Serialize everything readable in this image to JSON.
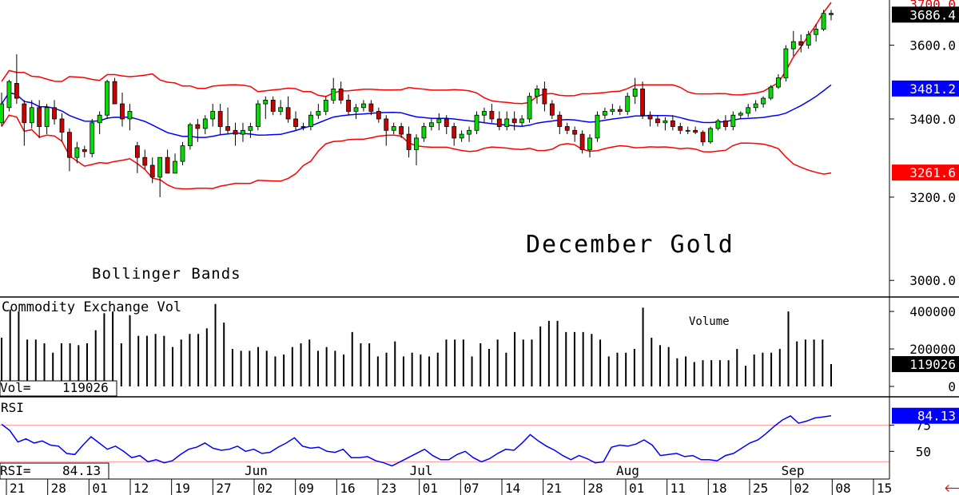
{
  "chart_data": {
    "type": "candlestick",
    "title": "December Gold",
    "indicator_label": "Bollinger Bands",
    "price_axis": {
      "scale": "log",
      "range": [
        2980,
        3710
      ],
      "ticks": [
        "3600.0",
        "3400.0",
        "3200.0",
        "3000.0"
      ],
      "tick_values": [
        3600,
        3400,
        3200,
        3000
      ],
      "top_clipped_label": "3700.0",
      "markers": [
        {
          "label": "3686.4",
          "value": 3686.4,
          "color": "#000000"
        },
        {
          "label": "3481.2",
          "value": 3481.2,
          "color": "#0000ff"
        },
        {
          "label": "3261.6",
          "value": 3261.6,
          "color": "#ff0000"
        }
      ]
    },
    "x_axis": {
      "labels": [
        "21",
        "28",
        "01",
        "12",
        "19",
        "27",
        "02",
        "09",
        "16",
        "23",
        "01",
        "07",
        "14",
        "21",
        "28",
        "01",
        "11",
        "18",
        "25",
        "02",
        "08",
        "15"
      ],
      "months": [
        "Jun",
        "Jul",
        "Aug",
        "Sep"
      ]
    },
    "candles": [
      [
        3390,
        3470,
        3380,
        3440
      ],
      [
        3430,
        3505,
        3420,
        3500
      ],
      [
        3495,
        3575,
        3440,
        3455
      ],
      [
        3440,
        3450,
        3330,
        3390
      ],
      [
        3390,
        3450,
        3375,
        3430
      ],
      [
        3430,
        3450,
        3350,
        3380
      ],
      [
        3380,
        3440,
        3360,
        3430
      ],
      [
        3430,
        3450,
        3385,
        3400
      ],
      [
        3400,
        3415,
        3340,
        3365
      ],
      [
        3365,
        3375,
        3265,
        3300
      ],
      [
        3300,
        3340,
        3285,
        3325
      ],
      [
        3320,
        3330,
        3300,
        3315
      ],
      [
        3310,
        3400,
        3300,
        3390
      ],
      [
        3390,
        3420,
        3360,
        3410
      ],
      [
        3410,
        3505,
        3400,
        3500
      ],
      [
        3500,
        3510,
        3440,
        3440
      ],
      [
        3440,
        3470,
        3380,
        3400
      ],
      [
        3400,
        3440,
        3370,
        3420
      ],
      [
        3330,
        3340,
        3260,
        3300
      ],
      [
        3300,
        3320,
        3270,
        3280
      ],
      [
        3280,
        3300,
        3235,
        3250
      ],
      [
        3250,
        3300,
        3200,
        3300
      ],
      [
        3300,
        3320,
        3260,
        3260
      ],
      [
        3260,
        3310,
        3260,
        3290
      ],
      [
        3290,
        3340,
        3280,
        3330
      ],
      [
        3330,
        3390,
        3320,
        3385
      ],
      [
        3385,
        3400,
        3340,
        3375
      ],
      [
        3375,
        3410,
        3360,
        3400
      ],
      [
        3400,
        3440,
        3380,
        3420
      ],
      [
        3420,
        3440,
        3360,
        3380
      ],
      [
        3380,
        3430,
        3360,
        3370
      ],
      [
        3370,
        3390,
        3330,
        3360
      ],
      [
        3360,
        3390,
        3340,
        3370
      ],
      [
        3370,
        3390,
        3350,
        3380
      ],
      [
        3380,
        3450,
        3370,
        3440
      ],
      [
        3440,
        3460,
        3400,
        3450
      ],
      [
        3450,
        3460,
        3410,
        3420
      ],
      [
        3420,
        3450,
        3410,
        3430
      ],
      [
        3430,
        3460,
        3390,
        3400
      ],
      [
        3400,
        3420,
        3370,
        3380
      ],
      [
        3380,
        3390,
        3370,
        3380
      ],
      [
        3380,
        3420,
        3370,
        3410
      ],
      [
        3410,
        3440,
        3400,
        3420
      ],
      [
        3420,
        3460,
        3410,
        3450
      ],
      [
        3450,
        3510,
        3440,
        3480
      ],
      [
        3480,
        3500,
        3440,
        3450
      ],
      [
        3450,
        3465,
        3410,
        3420
      ],
      [
        3420,
        3440,
        3400,
        3430
      ],
      [
        3430,
        3450,
        3420,
        3440
      ],
      [
        3440,
        3450,
        3410,
        3420
      ],
      [
        3420,
        3430,
        3390,
        3400
      ],
      [
        3400,
        3410,
        3330,
        3370
      ],
      [
        3370,
        3390,
        3360,
        3380
      ],
      [
        3380,
        3390,
        3350,
        3360
      ],
      [
        3360,
        3380,
        3300,
        3320
      ],
      [
        3320,
        3360,
        3280,
        3350
      ],
      [
        3350,
        3390,
        3340,
        3380
      ],
      [
        3380,
        3400,
        3370,
        3390
      ],
      [
        3390,
        3415,
        3370,
        3400
      ],
      [
        3400,
        3410,
        3360,
        3380
      ],
      [
        3380,
        3390,
        3330,
        3350
      ],
      [
        3350,
        3370,
        3340,
        3360
      ],
      [
        3360,
        3380,
        3340,
        3370
      ],
      [
        3370,
        3420,
        3360,
        3410
      ],
      [
        3410,
        3430,
        3390,
        3420
      ],
      [
        3420,
        3440,
        3390,
        3400
      ],
      [
        3400,
        3420,
        3370,
        3380
      ],
      [
        3380,
        3420,
        3370,
        3400
      ],
      [
        3400,
        3420,
        3370,
        3390
      ],
      [
        3390,
        3410,
        3380,
        3400
      ],
      [
        3400,
        3470,
        3390,
        3460
      ],
      [
        3460,
        3490,
        3440,
        3480
      ],
      [
        3480,
        3500,
        3420,
        3440
      ],
      [
        3440,
        3450,
        3400,
        3410
      ],
      [
        3410,
        3420,
        3360,
        3380
      ],
      [
        3380,
        3390,
        3360,
        3370
      ],
      [
        3370,
        3380,
        3340,
        3360
      ],
      [
        3360,
        3370,
        3310,
        3320
      ],
      [
        3320,
        3360,
        3300,
        3350
      ],
      [
        3350,
        3420,
        3340,
        3410
      ],
      [
        3410,
        3430,
        3400,
        3420
      ],
      [
        3420,
        3440,
        3410,
        3425
      ],
      [
        3425,
        3435,
        3410,
        3420
      ],
      [
        3420,
        3470,
        3410,
        3460
      ],
      [
        3460,
        3510,
        3440,
        3480
      ],
      [
        3480,
        3500,
        3400,
        3410
      ],
      [
        3410,
        3420,
        3380,
        3400
      ],
      [
        3400,
        3410,
        3380,
        3390
      ],
      [
        3390,
        3405,
        3370,
        3395
      ],
      [
        3395,
        3410,
        3370,
        3380
      ],
      [
        3380,
        3390,
        3360,
        3370
      ],
      [
        3370,
        3380,
        3360,
        3370
      ],
      [
        3370,
        3380,
        3360,
        3365
      ],
      [
        3365,
        3370,
        3330,
        3340
      ],
      [
        3340,
        3380,
        3335,
        3375
      ],
      [
        3375,
        3400,
        3370,
        3395
      ],
      [
        3395,
        3410,
        3370,
        3380
      ],
      [
        3380,
        3420,
        3370,
        3410
      ],
      [
        3410,
        3420,
        3400,
        3415
      ],
      [
        3415,
        3440,
        3405,
        3430
      ],
      [
        3430,
        3450,
        3420,
        3440
      ],
      [
        3440,
        3460,
        3430,
        3455
      ],
      [
        3455,
        3490,
        3450,
        3485
      ],
      [
        3485,
        3520,
        3480,
        3510
      ],
      [
        3510,
        3600,
        3500,
        3590
      ],
      [
        3590,
        3640,
        3570,
        3610
      ],
      [
        3610,
        3630,
        3580,
        3600
      ],
      [
        3600,
        3640,
        3590,
        3630
      ],
      [
        3630,
        3660,
        3610,
        3645
      ],
      [
        3645,
        3700,
        3640,
        3690
      ],
      [
        3690,
        3700,
        3670,
        3686.4
      ]
    ],
    "volume": {
      "title": "Commodity Exchange Vol",
      "annotation": "Volume",
      "readout_label": "Vol=",
      "readout_value": "119026",
      "ticks": [
        "400000",
        "200000",
        "0"
      ],
      "tick_values": [
        400000,
        200000,
        0
      ],
      "range": [
        0,
        460000
      ],
      "last_marker": "119026",
      "values": [
        [
          0,
          260000
        ],
        [
          1,
          410000
        ],
        [
          2,
          400000
        ],
        [
          3,
          250000
        ],
        [
          4,
          250000
        ],
        [
          5,
          230000
        ],
        [
          6,
          180000
        ],
        [
          7,
          230000
        ],
        [
          8,
          230000
        ],
        [
          9,
          220000
        ],
        [
          10,
          230000
        ],
        [
          11,
          300000
        ],
        [
          12,
          390000
        ],
        [
          13,
          400000
        ],
        [
          14,
          230000
        ],
        [
          15,
          380000
        ],
        [
          16,
          270000
        ],
        [
          17,
          270000
        ],
        [
          18,
          280000
        ],
        [
          19,
          270000
        ],
        [
          20,
          210000
        ],
        [
          21,
          250000
        ],
        [
          22,
          280000
        ],
        [
          23,
          280000
        ],
        [
          24,
          310000
        ],
        [
          25,
          440000
        ],
        [
          26,
          340000
        ],
        [
          27,
          200000
        ],
        [
          28,
          190000
        ],
        [
          29,
          190000
        ],
        [
          30,
          210000
        ],
        [
          31,
          190000
        ],
        [
          32,
          160000
        ],
        [
          33,
          170000
        ],
        [
          34,
          210000
        ],
        [
          35,
          230000
        ],
        [
          36,
          250000
        ],
        [
          37,
          190000
        ],
        [
          38,
          210000
        ],
        [
          39,
          190000
        ],
        [
          40,
          170000
        ],
        [
          41,
          290000
        ],
        [
          42,
          230000
        ],
        [
          43,
          230000
        ],
        [
          44,
          160000
        ],
        [
          45,
          180000
        ],
        [
          46,
          240000
        ],
        [
          47,
          160000
        ],
        [
          48,
          180000
        ],
        [
          49,
          170000
        ],
        [
          50,
          160000
        ],
        [
          51,
          180000
        ],
        [
          52,
          250000
        ],
        [
          53,
          250000
        ],
        [
          54,
          250000
        ],
        [
          55,
          160000
        ],
        [
          56,
          230000
        ],
        [
          57,
          200000
        ],
        [
          58,
          250000
        ],
        [
          59,
          180000
        ],
        [
          60,
          290000
        ],
        [
          61,
          250000
        ],
        [
          62,
          250000
        ],
        [
          63,
          320000
        ],
        [
          64,
          350000
        ],
        [
          65,
          350000
        ],
        [
          66,
          290000
        ],
        [
          67,
          290000
        ],
        [
          68,
          290000
        ],
        [
          69,
          280000
        ],
        [
          70,
          250000
        ],
        [
          71,
          160000
        ],
        [
          72,
          180000
        ],
        [
          73,
          180000
        ],
        [
          74,
          200000
        ],
        [
          75,
          420000
        ],
        [
          76,
          260000
        ],
        [
          77,
          220000
        ],
        [
          78,
          210000
        ],
        [
          79,
          150000
        ],
        [
          80,
          160000
        ],
        [
          81,
          130000
        ],
        [
          82,
          140000
        ],
        [
          83,
          140000
        ],
        [
          84,
          140000
        ],
        [
          85,
          140000
        ],
        [
          86,
          200000
        ],
        [
          87,
          110000
        ],
        [
          88,
          170000
        ],
        [
          89,
          180000
        ],
        [
          90,
          180000
        ],
        [
          91,
          200000
        ],
        [
          92,
          400000
        ],
        [
          93,
          240000
        ],
        [
          94,
          250000
        ],
        [
          95,
          250000
        ],
        [
          96,
          250000
        ],
        [
          97,
          119026
        ]
      ]
    },
    "rsi": {
      "label": "RSI",
      "readout_label": "RSI=",
      "readout_value": "84.13",
      "ticks": [
        "75",
        "50"
      ],
      "tick_values": [
        75,
        50
      ],
      "range": [
        25,
        100
      ],
      "last_marker": "84.13",
      "values": [
        76,
        70,
        59,
        62,
        58,
        60,
        56,
        55,
        48,
        47,
        56,
        64,
        58,
        52,
        55,
        50,
        44,
        46,
        40,
        42,
        39,
        41,
        47,
        52,
        54,
        58,
        53,
        51,
        52,
        55,
        50,
        52,
        48,
        49,
        54,
        58,
        63,
        55,
        53,
        54,
        50,
        49,
        52,
        44,
        44,
        45,
        41,
        39,
        36,
        40,
        44,
        48,
        52,
        46,
        42,
        42,
        47,
        50,
        44,
        40,
        43,
        48,
        52,
        51,
        58,
        66,
        60,
        55,
        51,
        46,
        42,
        46,
        43,
        39,
        40,
        54,
        56,
        55,
        57,
        61,
        56,
        46,
        47,
        48,
        45,
        46,
        42,
        42,
        41,
        46,
        48,
        53,
        58,
        61,
        67,
        74,
        80,
        84,
        77,
        79,
        82,
        83,
        84.13
      ]
    }
  }
}
